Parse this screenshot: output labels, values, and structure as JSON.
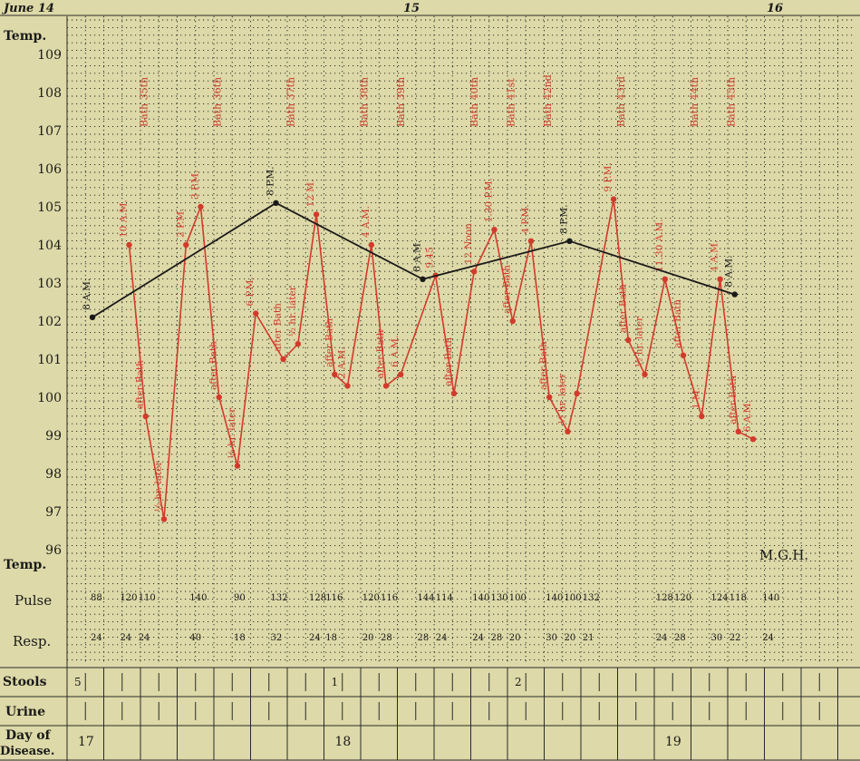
{
  "chart_data": {
    "type": "line",
    "dates": [
      "June 14",
      "15",
      "16"
    ],
    "axis_labels": {
      "temp_top": "Temp.",
      "temp_bottom": "Temp.",
      "pulse": "Pulse",
      "resp": "Resp.",
      "stools": "Stools",
      "urine": "Urine",
      "day_line1": "Day of",
      "day_line2": "Disease."
    },
    "yticks": [
      109,
      108,
      107,
      106,
      105,
      104,
      103,
      102,
      101,
      100,
      99,
      98,
      97,
      96
    ],
    "ylim": [
      95.5,
      109.5
    ],
    "mark": "M.G.H.",
    "baths": [
      {
        "label": "Bath 35th",
        "col": 1
      },
      {
        "label": "Bath 36th",
        "col": 3
      },
      {
        "label": "Bath 37th",
        "col": 5
      },
      {
        "label": "Bath 38th",
        "col": 7
      },
      {
        "label": "Bath 39th",
        "col": 8
      },
      {
        "label": "Bath 40th",
        "col": 10
      },
      {
        "label": "Bath 41st",
        "col": 11
      },
      {
        "label": "Bath 42nd",
        "col": 12
      },
      {
        "label": "Bath 43rd",
        "col": 14
      },
      {
        "label": "Bath 44th",
        "col": 16
      },
      {
        "label": "Bath 45th",
        "col": 17
      }
    ],
    "series": [
      {
        "name": "",
        "color": "#d33a2c",
        "points": [
          {
            "x": 1.0,
            "y": 104.0,
            "label": "10 A.M."
          },
          {
            "x": 1.45,
            "y": 99.5,
            "label": "after Bath"
          },
          {
            "x": 1.95,
            "y": 96.8,
            "label": "½ hr. later"
          },
          {
            "x": 2.55,
            "y": 104.0,
            "label": "2 P.M."
          },
          {
            "x": 2.95,
            "y": 105.0,
            "label": "3 P.M."
          },
          {
            "x": 3.45,
            "y": 100.0,
            "label": "after Bath"
          },
          {
            "x": 3.95,
            "y": 98.2,
            "label": "½ hr. later"
          },
          {
            "x": 4.45,
            "y": 102.2,
            "label": "6 P.M."
          },
          {
            "x": 5.2,
            "y": 101.0,
            "label": "after Bath"
          },
          {
            "x": 5.6,
            "y": 101.4,
            "label": "½ hr. later"
          },
          {
            "x": 6.1,
            "y": 104.8,
            "label": "12 M."
          },
          {
            "x": 6.6,
            "y": 100.6,
            "label": "after Bath"
          },
          {
            "x": 6.95,
            "y": 100.3,
            "label": "2 A.M."
          },
          {
            "x": 7.6,
            "y": 104.0,
            "label": "4 A.M."
          },
          {
            "x": 8.0,
            "y": 100.3,
            "label": "after Bath"
          },
          {
            "x": 8.4,
            "y": 100.6,
            "label": "6 A.M."
          },
          {
            "x": 9.35,
            "y": 103.2,
            "label": "9.45"
          },
          {
            "x": 9.85,
            "y": 100.1,
            "label": "after Bath"
          },
          {
            "x": 10.4,
            "y": 103.3,
            "label": "12 Noon"
          },
          {
            "x": 10.95,
            "y": 104.4,
            "label": "1.30 P.M."
          },
          {
            "x": 11.45,
            "y": 102.0,
            "label": "after Bath"
          },
          {
            "x": 11.95,
            "y": 104.1,
            "label": "4 P.M."
          },
          {
            "x": 12.45,
            "y": 100.0,
            "label": "after Bath"
          },
          {
            "x": 12.95,
            "y": 99.1,
            "label": "½ hr. later"
          },
          {
            "x": 13.2,
            "y": 100.1,
            "label": ""
          },
          {
            "x": 14.2,
            "y": 105.2,
            "label": "9 P.M."
          },
          {
            "x": 14.6,
            "y": 101.5,
            "label": "after Bath"
          },
          {
            "x": 15.05,
            "y": 100.6,
            "label": "½ hr. later"
          },
          {
            "x": 15.6,
            "y": 103.1,
            "label": "11.30 A.M."
          },
          {
            "x": 16.1,
            "y": 101.1,
            "label": "after Bath"
          },
          {
            "x": 16.6,
            "y": 99.5,
            "label": "1 M."
          },
          {
            "x": 17.1,
            "y": 103.1,
            "label": "4 A.M."
          },
          {
            "x": 17.6,
            "y": 99.1,
            "label": "after Bath"
          },
          {
            "x": 18.0,
            "y": 98.9,
            "label": "6 A.M."
          }
        ]
      },
      {
        "name": "",
        "color": "#1a1a1a",
        "points": [
          {
            "x": 0.0,
            "y": 102.1,
            "label": "8 A.M."
          },
          {
            "x": 5.0,
            "y": 105.1,
            "label": "8 P.M."
          },
          {
            "x": 9.0,
            "y": 103.1,
            "label": "8 A.M."
          },
          {
            "x": 13.0,
            "y": 104.1,
            "label": "8 P.M."
          },
          {
            "x": 17.5,
            "y": 102.7,
            "label": "8 A.M."
          }
        ]
      }
    ],
    "pulse": [
      {
        "x": 0.1,
        "v": "88"
      },
      {
        "x": 0.9,
        "v": "120"
      },
      {
        "x": 1.4,
        "v": "110"
      },
      {
        "x": 2.8,
        "v": "140"
      },
      {
        "x": 4.0,
        "v": "90"
      },
      {
        "x": 5.0,
        "v": "132"
      },
      {
        "x": 6.05,
        "v": "128"
      },
      {
        "x": 6.5,
        "v": "116"
      },
      {
        "x": 7.5,
        "v": "120"
      },
      {
        "x": 8.0,
        "v": "116"
      },
      {
        "x": 9.0,
        "v": "144"
      },
      {
        "x": 9.5,
        "v": "114"
      },
      {
        "x": 10.5,
        "v": "140"
      },
      {
        "x": 11.0,
        "v": "130"
      },
      {
        "x": 11.5,
        "v": "100"
      },
      {
        "x": 12.5,
        "v": "140"
      },
      {
        "x": 13.0,
        "v": "100"
      },
      {
        "x": 13.5,
        "v": "132"
      },
      {
        "x": 15.5,
        "v": "128"
      },
      {
        "x": 16.0,
        "v": "120"
      },
      {
        "x": 17.0,
        "v": "124"
      },
      {
        "x": 17.5,
        "v": "118"
      },
      {
        "x": 18.4,
        "v": "140"
      }
    ],
    "resp": [
      {
        "x": 0.1,
        "v": "24"
      },
      {
        "x": 0.9,
        "v": "24"
      },
      {
        "x": 1.4,
        "v": "24"
      },
      {
        "x": 2.8,
        "v": "40"
      },
      {
        "x": 4.0,
        "v": "18"
      },
      {
        "x": 5.0,
        "v": "32"
      },
      {
        "x": 6.05,
        "v": "24"
      },
      {
        "x": 6.5,
        "v": "18"
      },
      {
        "x": 7.5,
        "v": "20"
      },
      {
        "x": 8.0,
        "v": "28"
      },
      {
        "x": 9.0,
        "v": "28"
      },
      {
        "x": 9.5,
        "v": "24"
      },
      {
        "x": 10.5,
        "v": "24"
      },
      {
        "x": 11.0,
        "v": "28"
      },
      {
        "x": 11.5,
        "v": "20"
      },
      {
        "x": 12.5,
        "v": "30"
      },
      {
        "x": 13.0,
        "v": "20"
      },
      {
        "x": 13.5,
        "v": "21"
      },
      {
        "x": 15.5,
        "v": "24"
      },
      {
        "x": 16.0,
        "v": "28"
      },
      {
        "x": 17.0,
        "v": "30"
      },
      {
        "x": 17.5,
        "v": "22"
      },
      {
        "x": 18.4,
        "v": "24"
      }
    ],
    "stools": [
      {
        "col": 0,
        "v": "5"
      },
      {
        "col": 7,
        "v": "1"
      },
      {
        "col": 12,
        "v": "2"
      }
    ],
    "day_of_disease": [
      {
        "col": 0,
        "v": "17"
      },
      {
        "col": 7,
        "v": "18"
      },
      {
        "col": 16,
        "v": "19"
      }
    ]
  }
}
